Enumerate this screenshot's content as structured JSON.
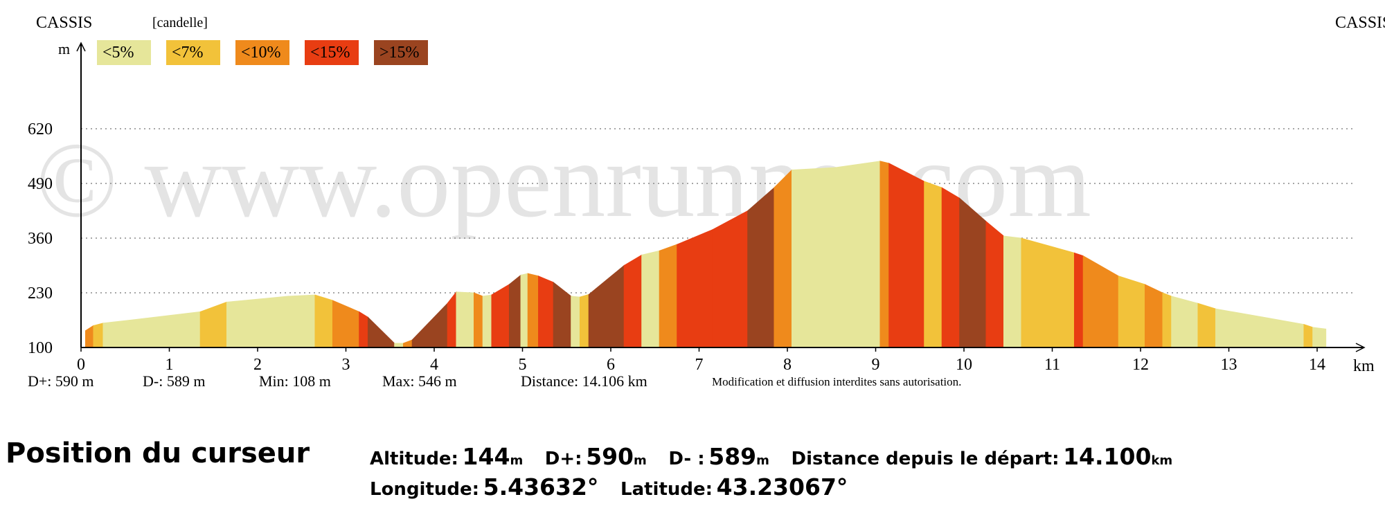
{
  "header": {
    "start_name": "CASSIS",
    "end_name": "CASSIS",
    "mode_label": "[candelle]"
  },
  "legend": [
    {
      "label": "<5%",
      "color": "#e6e69a"
    },
    {
      "label": "<7%",
      "color": "#f2c23a"
    },
    {
      "label": "<10%",
      "color": "#ef8a1c"
    },
    {
      "label": "<15%",
      "color": "#e83d12"
    },
    {
      "label": ">15%",
      "color": "#9a4420"
    }
  ],
  "watermark": "© www.openrunner.com",
  "stats": {
    "dplus": "D+: 590 m",
    "dminus": "D-: 589 m",
    "min": "Min: 108 m",
    "max": "Max: 546 m",
    "distance": "Distance: 14.106 km",
    "notice": "Modification et diffusion interdites sans autorisation."
  },
  "chart_data": {
    "type": "area",
    "title": "",
    "xlabel": "km",
    "ylabel": "m",
    "xlim": [
      0,
      14.5
    ],
    "ylim": [
      100,
      620
    ],
    "x_ticks": [
      0,
      1,
      2,
      3,
      4,
      5,
      6,
      7,
      8,
      9,
      10,
      11,
      12,
      13,
      14
    ],
    "y_ticks": [
      100,
      230,
      360,
      490,
      620
    ],
    "grid": true,
    "segments": [
      {
        "x0": 0.05,
        "x1": 0.14,
        "y0": 140,
        "y1": 152,
        "cls": 2
      },
      {
        "x0": 0.14,
        "x1": 0.25,
        "y0": 152,
        "y1": 158,
        "cls": 1
      },
      {
        "x0": 0.25,
        "x1": 0.55,
        "y0": 158,
        "y1": 165,
        "cls": 0
      },
      {
        "x0": 0.55,
        "x1": 1.35,
        "y0": 165,
        "y1": 185,
        "cls": 0
      },
      {
        "x0": 1.35,
        "x1": 1.65,
        "y0": 185,
        "y1": 208,
        "cls": 1
      },
      {
        "x0": 1.65,
        "x1": 2.35,
        "y0": 208,
        "y1": 222,
        "cls": 0
      },
      {
        "x0": 2.35,
        "x1": 2.65,
        "y0": 222,
        "y1": 225,
        "cls": 0
      },
      {
        "x0": 2.65,
        "x1": 2.85,
        "y0": 225,
        "y1": 212,
        "cls": 1
      },
      {
        "x0": 2.85,
        "x1": 3.15,
        "y0": 212,
        "y1": 185,
        "cls": 2
      },
      {
        "x0": 3.15,
        "x1": 3.25,
        "y0": 185,
        "y1": 172,
        "cls": 3
      },
      {
        "x0": 3.25,
        "x1": 3.55,
        "y0": 172,
        "y1": 110,
        "cls": 4
      },
      {
        "x0": 3.55,
        "x1": 3.65,
        "y0": 110,
        "y1": 110,
        "cls": 0
      },
      {
        "x0": 3.65,
        "x1": 3.75,
        "y0": 110,
        "y1": 118,
        "cls": 2
      },
      {
        "x0": 3.75,
        "x1": 4.15,
        "y0": 118,
        "y1": 205,
        "cls": 4
      },
      {
        "x0": 4.15,
        "x1": 4.25,
        "y0": 205,
        "y1": 232,
        "cls": 3
      },
      {
        "x0": 4.25,
        "x1": 4.45,
        "y0": 232,
        "y1": 230,
        "cls": 0
      },
      {
        "x0": 4.45,
        "x1": 4.55,
        "y0": 230,
        "y1": 222,
        "cls": 2
      },
      {
        "x0": 4.55,
        "x1": 4.65,
        "y0": 222,
        "y1": 225,
        "cls": 0
      },
      {
        "x0": 4.65,
        "x1": 4.85,
        "y0": 225,
        "y1": 250,
        "cls": 3
      },
      {
        "x0": 4.85,
        "x1": 4.98,
        "y0": 250,
        "y1": 272,
        "cls": 4
      },
      {
        "x0": 4.98,
        "x1": 5.06,
        "y0": 272,
        "y1": 276,
        "cls": 0
      },
      {
        "x0": 5.06,
        "x1": 5.18,
        "y0": 276,
        "y1": 270,
        "cls": 2
      },
      {
        "x0": 5.18,
        "x1": 5.35,
        "y0": 270,
        "y1": 255,
        "cls": 3
      },
      {
        "x0": 5.35,
        "x1": 5.55,
        "y0": 255,
        "y1": 222,
        "cls": 4
      },
      {
        "x0": 5.55,
        "x1": 5.65,
        "y0": 222,
        "y1": 220,
        "cls": 0
      },
      {
        "x0": 5.65,
        "x1": 5.75,
        "y0": 220,
        "y1": 226,
        "cls": 1
      },
      {
        "x0": 5.75,
        "x1": 6.15,
        "y0": 226,
        "y1": 295,
        "cls": 4
      },
      {
        "x0": 6.15,
        "x1": 6.35,
        "y0": 295,
        "y1": 320,
        "cls": 3
      },
      {
        "x0": 6.35,
        "x1": 6.55,
        "y0": 320,
        "y1": 330,
        "cls": 0
      },
      {
        "x0": 6.55,
        "x1": 6.75,
        "y0": 330,
        "y1": 345,
        "cls": 2
      },
      {
        "x0": 6.75,
        "x1": 7.15,
        "y0": 345,
        "y1": 380,
        "cls": 3
      },
      {
        "x0": 7.15,
        "x1": 7.55,
        "y0": 380,
        "y1": 425,
        "cls": 3
      },
      {
        "x0": 7.55,
        "x1": 7.85,
        "y0": 425,
        "y1": 480,
        "cls": 4
      },
      {
        "x0": 7.85,
        "x1": 8.05,
        "y0": 480,
        "y1": 522,
        "cls": 2
      },
      {
        "x0": 8.05,
        "x1": 8.55,
        "y0": 522,
        "y1": 528,
        "cls": 0
      },
      {
        "x0": 8.55,
        "x1": 9.05,
        "y0": 528,
        "y1": 543,
        "cls": 0
      },
      {
        "x0": 9.05,
        "x1": 9.15,
        "y0": 543,
        "y1": 538,
        "cls": 2
      },
      {
        "x0": 9.15,
        "x1": 9.55,
        "y0": 538,
        "y1": 495,
        "cls": 3
      },
      {
        "x0": 9.55,
        "x1": 9.75,
        "y0": 495,
        "y1": 480,
        "cls": 1
      },
      {
        "x0": 9.75,
        "x1": 9.95,
        "y0": 480,
        "y1": 455,
        "cls": 3
      },
      {
        "x0": 9.95,
        "x1": 10.25,
        "y0": 455,
        "y1": 400,
        "cls": 4
      },
      {
        "x0": 10.25,
        "x1": 10.45,
        "y0": 400,
        "y1": 365,
        "cls": 3
      },
      {
        "x0": 10.45,
        "x1": 10.65,
        "y0": 365,
        "y1": 360,
        "cls": 0
      },
      {
        "x0": 10.65,
        "x1": 11.25,
        "y0": 360,
        "y1": 325,
        "cls": 1
      },
      {
        "x0": 11.25,
        "x1": 11.35,
        "y0": 325,
        "y1": 318,
        "cls": 3
      },
      {
        "x0": 11.35,
        "x1": 11.75,
        "y0": 318,
        "y1": 270,
        "cls": 2
      },
      {
        "x0": 11.75,
        "x1": 12.05,
        "y0": 270,
        "y1": 250,
        "cls": 1
      },
      {
        "x0": 12.05,
        "x1": 12.25,
        "y0": 250,
        "y1": 230,
        "cls": 2
      },
      {
        "x0": 12.25,
        "x1": 12.35,
        "y0": 230,
        "y1": 222,
        "cls": 1
      },
      {
        "x0": 12.35,
        "x1": 12.65,
        "y0": 222,
        "y1": 205,
        "cls": 0
      },
      {
        "x0": 12.65,
        "x1": 12.85,
        "y0": 205,
        "y1": 192,
        "cls": 1
      },
      {
        "x0": 12.85,
        "x1": 13.45,
        "y0": 192,
        "y1": 170,
        "cls": 0
      },
      {
        "x0": 13.45,
        "x1": 13.85,
        "y0": 170,
        "y1": 155,
        "cls": 0
      },
      {
        "x0": 13.85,
        "x1": 13.95,
        "y0": 155,
        "y1": 148,
        "cls": 1
      },
      {
        "x0": 13.95,
        "x1": 14.1,
        "y0": 148,
        "y1": 144,
        "cls": 0
      }
    ]
  },
  "cursor": {
    "title": "Position du curseur",
    "altitude_label": "Altitude:",
    "altitude_value": "144",
    "altitude_unit": "m",
    "dplus_label": "D+:",
    "dplus_value": "590",
    "dplus_unit": "m",
    "dminus_label": "D- :",
    "dminus_value": "589",
    "dminus_unit": "m",
    "dist_label": "Distance depuis le départ:",
    "dist_value": "14.100",
    "dist_unit": "km",
    "lon_label": "Longitude:",
    "lon_value": "5.43632°",
    "lat_label": "Latitude:",
    "lat_value": "43.23067°"
  }
}
